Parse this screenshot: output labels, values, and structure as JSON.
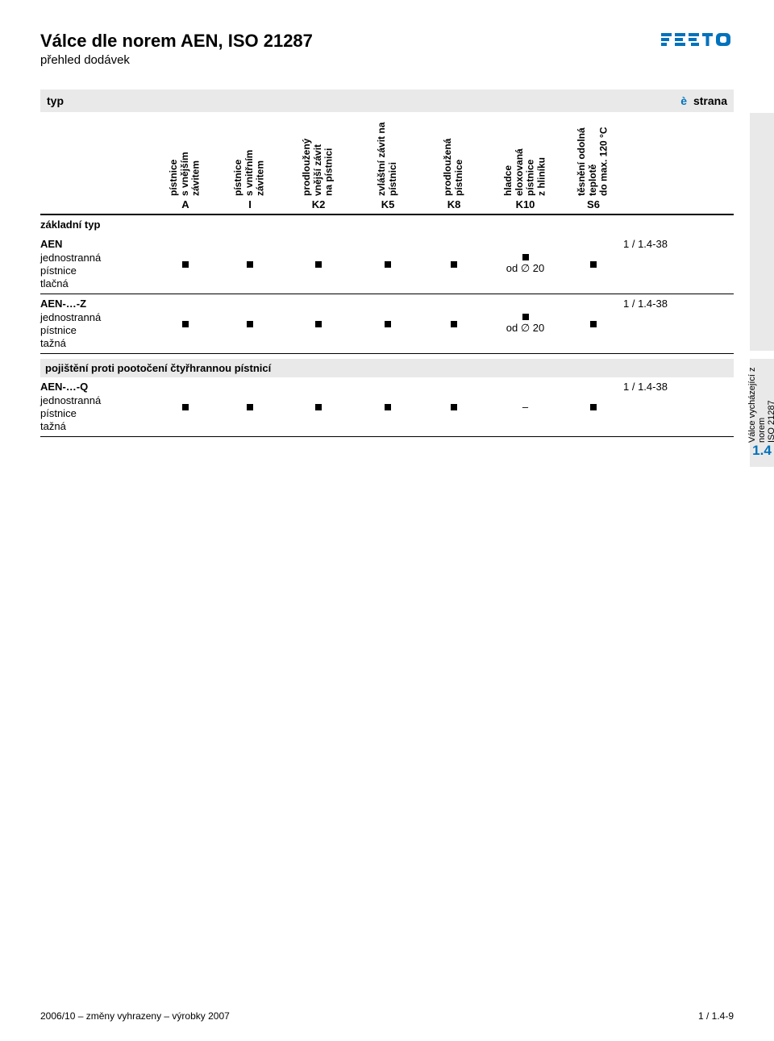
{
  "colors": {
    "accent": "#0072bc",
    "header_bg": "#e9e9e9",
    "text": "#000000",
    "page_bg": "#ffffff"
  },
  "header": {
    "title": "Válce dle norem AEN, ISO 21287",
    "subtitle": "přehled dodávek"
  },
  "typ_row": {
    "left": "typ",
    "arrow": "è",
    "right": "strana"
  },
  "columns": [
    {
      "code": "A",
      "label": "pístnice\ns vnějším závitem"
    },
    {
      "code": "I",
      "label": "pístnice\ns vnitřním závitem"
    },
    {
      "code": "K2",
      "label": "prodloužený vnější závit\nna pístnici"
    },
    {
      "code": "K5",
      "label": "zvláštní závit na pístnici"
    },
    {
      "code": "K8",
      "label": "prodloužená pístnice"
    },
    {
      "code": "K10",
      "label": "hladce eloxovaná pístnice\nz hliníku"
    },
    {
      "code": "S6",
      "label": "těsnění odolná teplotě\ndo max. 120 °C"
    }
  ],
  "section1_label": "základní typ",
  "rows_section1": [
    {
      "name": "AEN",
      "desc": "jednostranná\npístnice\ntlačná",
      "cells": [
        "■",
        "■",
        "■",
        "■",
        "■",
        "■\nod ∅ 20",
        "■"
      ],
      "page": "1 / 1.4-38"
    },
    {
      "name": "AEN-…-Z",
      "desc": "jednostranná\npístnice\ntažná",
      "cells": [
        "■",
        "■",
        "■",
        "■",
        "■",
        "■\nod ∅ 20",
        "■"
      ],
      "page": "1 / 1.4-38"
    }
  ],
  "section2_label": "pojištění proti pootočení čtyřhrannou pístnicí",
  "rows_section2": [
    {
      "name": "AEN-…-Q",
      "desc": "jednostranná\npístnice\ntažná",
      "cells": [
        "■",
        "■",
        "■",
        "■",
        "■",
        "–",
        "■"
      ],
      "page": "1 / 1.4-38"
    }
  ],
  "tab": {
    "label": "Válce vycházející z norem\nISO 21287",
    "num": "1.4"
  },
  "footer": {
    "left": "2006/10 – změny vyhrazeny – výrobky 2007",
    "right": "1 / 1.4-9"
  }
}
